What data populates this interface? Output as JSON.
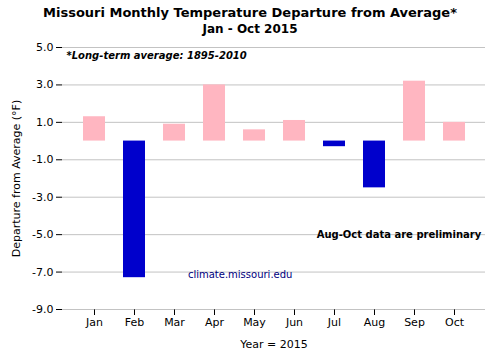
{
  "chart_data": {
    "type": "bar",
    "title": "Missouri Monthly Temperature Departure from Average*",
    "subtitle": "Jan - Oct 2015",
    "xlabel": "Year = 2015",
    "ylabel": "Departure from Average (°F)",
    "categories": [
      "Jan",
      "Feb",
      "Mar",
      "Apr",
      "May",
      "Jun",
      "Jul",
      "Aug",
      "Sep",
      "Oct"
    ],
    "values": [
      1.3,
      -7.3,
      0.9,
      3.0,
      0.6,
      1.1,
      -0.3,
      -2.5,
      3.2,
      1.0
    ],
    "colors": [
      "#FFB6C1",
      "#0000CC",
      "#FFB6C1",
      "#FFB6C1",
      "#FFB6C1",
      "#FFB6C1",
      "#0000CC",
      "#0000CC",
      "#FFB6C1",
      "#FFB6C1"
    ],
    "ylim": [
      -9.0,
      5.0
    ],
    "yticks": [
      {
        "value": 5.0,
        "label": "5.0"
      },
      {
        "value": 3.0,
        "label": "3.0"
      },
      {
        "value": 1.0,
        "label": "1.0"
      },
      {
        "value": -1.0,
        "label": "-1.0"
      },
      {
        "value": -3.0,
        "label": "-3.0"
      },
      {
        "value": -5.0,
        "label": "-5.0"
      },
      {
        "value": -7.0,
        "label": "-7.0"
      },
      {
        "value": -9.0,
        "label": "-9.0"
      }
    ],
    "grid": true,
    "annotations": [
      "*Long-term average: 1895-2010",
      "climate.missouri.edu",
      "Aug-Oct data are preliminary"
    ]
  }
}
